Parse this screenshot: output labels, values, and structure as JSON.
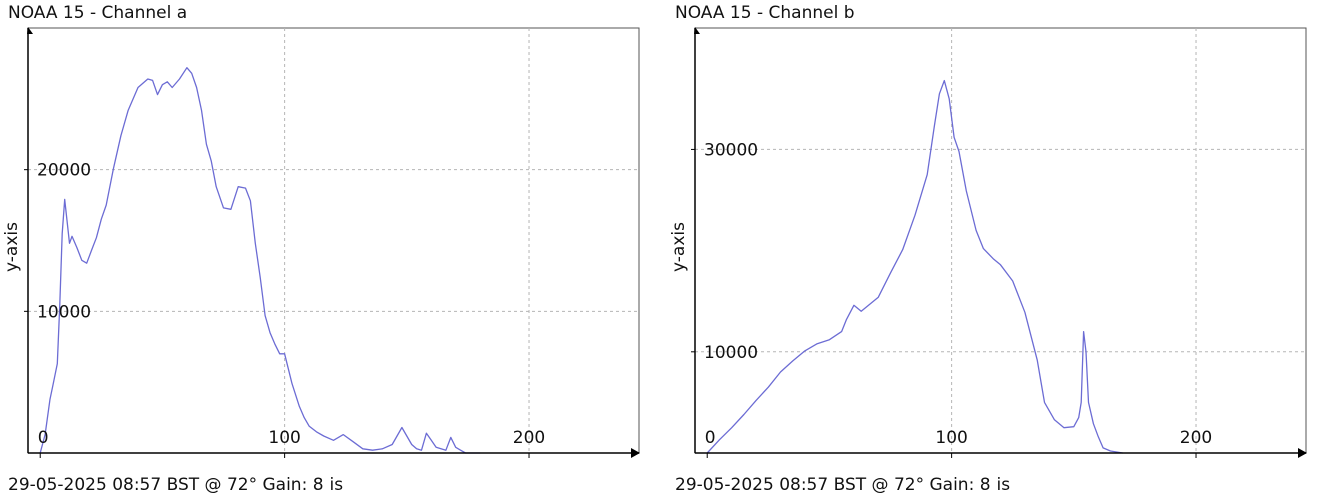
{
  "panels": [
    {
      "title": "NOAA 15 - Channel a",
      "footer": {
        "info": "29-05-2025 08:57 BST @ 72° Gain: 8",
        "gain_suffix": "is"
      },
      "ylabel": "y-axis"
    },
    {
      "title": "NOAA 15 - Channel b",
      "footer": {
        "info": "29-05-2025 08:57 BST @ 72° Gain: 8",
        "gain_suffix": "is"
      },
      "ylabel": "y-axis"
    }
  ],
  "colors": {
    "line": "#6c6cd4",
    "grid": "#b5b5b5",
    "axis": "#000000"
  },
  "chart_data": [
    {
      "type": "line",
      "title": "NOAA 15 - Channel a",
      "xlabel": "",
      "ylabel": "y-axis",
      "xlim": [
        -5,
        245
      ],
      "ylim": [
        0,
        30000
      ],
      "xticks": [
        0,
        100,
        200
      ],
      "yticks": [
        10000,
        20000
      ],
      "xtick_labels": [
        "0",
        "100",
        "200"
      ],
      "ytick_labels": [
        "10000",
        "20000"
      ],
      "grid": true,
      "series": [
        {
          "x": [
            0,
            2,
            4,
            5,
            7,
            8,
            9,
            10,
            12,
            13,
            15,
            17,
            19,
            21,
            23,
            25,
            27,
            30,
            33,
            36,
            40,
            44,
            46,
            48,
            50,
            52,
            54,
            57,
            60,
            62,
            64,
            66,
            68,
            70,
            72,
            75,
            78,
            81,
            84,
            86,
            88,
            90,
            92,
            94,
            96,
            98,
            100,
            103,
            106,
            108,
            110,
            113,
            116,
            120,
            124,
            128,
            132,
            136,
            140,
            144,
            148,
            152,
            154,
            156,
            158,
            160,
            162,
            164,
            166,
            168,
            170,
            172,
            174,
            180
          ],
          "y": [
            0,
            1300,
            3800,
            4600,
            6300,
            10500,
            15500,
            17900,
            14800,
            15300,
            14500,
            13600,
            13400,
            14300,
            15200,
            16500,
            17500,
            20100,
            22400,
            24200,
            25800,
            26400,
            26300,
            25300,
            26000,
            26200,
            25800,
            26400,
            27200,
            26800,
            25800,
            24200,
            21800,
            20600,
            18800,
            17300,
            17200,
            18800,
            18700,
            17800,
            14800,
            12400,
            9700,
            8500,
            7700,
            7000,
            7000,
            4900,
            3300,
            2500,
            1900,
            1500,
            1200,
            900,
            1300,
            800,
            300,
            200,
            300,
            600,
            1800,
            600,
            300,
            200,
            1400,
            900,
            400,
            300,
            200,
            1100,
            400,
            200,
            0,
            0
          ]
        }
      ]
    },
    {
      "type": "line",
      "title": "NOAA 15 - Channel b",
      "xlabel": "",
      "ylabel": "y-axis",
      "xlim": [
        -5,
        245
      ],
      "ylim": [
        0,
        42000
      ],
      "xticks": [
        0,
        100,
        200
      ],
      "yticks": [
        10000,
        30000
      ],
      "xtick_labels": [
        "0",
        "100",
        "200"
      ],
      "ytick_labels": [
        "10000",
        "30000"
      ],
      "grid": true,
      "series": [
        {
          "x": [
            0,
            5,
            10,
            15,
            20,
            25,
            30,
            35,
            40,
            45,
            50,
            55,
            57,
            60,
            63,
            65,
            70,
            75,
            80,
            85,
            90,
            93,
            95,
            97,
            99,
            101,
            103,
            106,
            110,
            113,
            117,
            120,
            125,
            130,
            135,
            138,
            142,
            146,
            150,
            152,
            153,
            154,
            155,
            156,
            158,
            160,
            162,
            165,
            170
          ],
          "y": [
            0,
            1300,
            2500,
            3800,
            5200,
            6500,
            8000,
            9100,
            10100,
            10800,
            11200,
            12000,
            13200,
            14600,
            14000,
            14400,
            15400,
            17800,
            20100,
            23500,
            27500,
            32400,
            35500,
            36800,
            35000,
            31200,
            29800,
            25900,
            22000,
            20200,
            19200,
            18600,
            17000,
            13900,
            9200,
            5000,
            3300,
            2500,
            2600,
            3500,
            5000,
            12000,
            10000,
            5000,
            2900,
            1600,
            500,
            200,
            0
          ]
        }
      ]
    }
  ]
}
